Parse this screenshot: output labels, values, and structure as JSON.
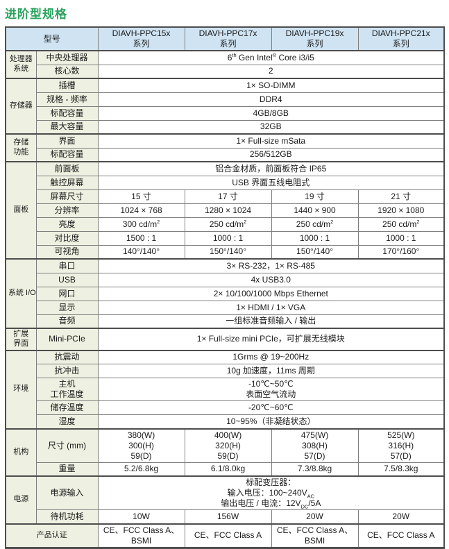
{
  "page_title": "进阶型规格",
  "colors": {
    "title-green": "#29A35D",
    "header-bg": "#CFE3F2",
    "label-bg": "#EEF0E1",
    "border-dark": "#4D4D4D",
    "border-mid": "#7F7F7F",
    "text": "#1A1A1A"
  },
  "table": {
    "header": {
      "label": "型号",
      "models": [
        "DIAVH-PPC15x\n系列",
        "DIAVH-PPC17x\n系列",
        "DIAVH-PPC19x\n系列",
        "DIAVH-PPC21x\n系列"
      ]
    },
    "groups": [
      {
        "name": "处理器\n系统",
        "rows": [
          {
            "label": "中央处理器",
            "value": "6^{th} Gen Intel^{®} Core i3/i5"
          },
          {
            "label": "核心数",
            "value": "2"
          }
        ]
      },
      {
        "name": "存储器",
        "rows": [
          {
            "label": "插槽",
            "value": "1× SO-DIMM"
          },
          {
            "label": "规格 - 频率",
            "value": "DDR4"
          },
          {
            "label": "标配容量",
            "value": "4GB/8GB"
          },
          {
            "label": "最大容量",
            "value": "32GB"
          }
        ]
      },
      {
        "name": "存储\n功能",
        "rows": [
          {
            "label": "界面",
            "value": "1× Full-size mSata"
          },
          {
            "label": "标配容量",
            "value": "256/512GB"
          }
        ]
      },
      {
        "name": "面板",
        "rows": [
          {
            "label": "前面板",
            "value": "铝合金材质，前面板符合 IP65"
          },
          {
            "label": "触控屏幕",
            "value": "USB 界面五线电阻式"
          },
          {
            "label": "屏幕尺寸",
            "values": [
              "15 寸",
              "17 寸",
              "19 寸",
              "21 寸"
            ]
          },
          {
            "label": "分辨率",
            "values": [
              "1024 × 768",
              "1280 × 1024",
              "1440 × 900",
              "1920 × 1080"
            ]
          },
          {
            "label": "亮度",
            "values": [
              "300 cd/m^{2}",
              "250 cd/m^{2}",
              "250 cd/m^{2}",
              "250 cd/m^{2}"
            ]
          },
          {
            "label": "对比度",
            "values": [
              "1500 : 1",
              "1000 : 1",
              "1000 : 1",
              "1000 : 1"
            ]
          },
          {
            "label": "可视角",
            "values": [
              "140°/140°",
              "150°/140°",
              "150°/140°",
              "170°/160°"
            ]
          }
        ]
      },
      {
        "name": "系统 I/O",
        "rows": [
          {
            "label": "串口",
            "value": "3× RS-232，1× RS-485"
          },
          {
            "label": "USB",
            "value": "4x USB3.0"
          },
          {
            "label": "网口",
            "value": "2× 10/100/1000 Mbps Ethernet"
          },
          {
            "label": "显示",
            "value": "1× HDMI / 1× VGA"
          },
          {
            "label": "音频",
            "value": "一组标准音频输入 / 输出"
          }
        ]
      },
      {
        "name": "扩展\n界面",
        "rows": [
          {
            "label": "Mini-PCIe",
            "value": "1× Full-size mini PCIe，可扩展无线模块"
          }
        ]
      },
      {
        "name": "环境",
        "rows": [
          {
            "label": "抗震动",
            "value": "1Grms @ 19~200Hz"
          },
          {
            "label": "抗冲击",
            "value": "10g 加速度，11ms 周期"
          },
          {
            "label": "主机\n工作温度",
            "value": "-10℃~50℃\n表面空气流动"
          },
          {
            "label": "储存温度",
            "value": "-20℃~60℃"
          },
          {
            "label": "湿度",
            "value": "10~95%（非凝结状态）"
          }
        ]
      },
      {
        "name": "机构",
        "rows": [
          {
            "label": "尺寸 (mm)",
            "values": [
              "380(W)\n300(H)\n59(D)",
              "400(W)\n320(H)\n59(D)",
              "475(W)\n308(H)\n57(D)",
              "525(W)\n316(H)\n57(D)"
            ]
          },
          {
            "label": "重量",
            "values": [
              "5.2/6.8kg",
              "6.1/8.0kg",
              "7.3/8.8kg",
              "7.5/8.3kg"
            ]
          }
        ]
      },
      {
        "name": "电源",
        "rows": [
          {
            "label": "电源输入",
            "value": "标配变压器：\n输入电压：100~240V_{AC}\n输出电压 / 电流：12V_{DC}/5A"
          },
          {
            "label": "待机功耗",
            "values": [
              "10W",
              "156W",
              "20W",
              "20W"
            ]
          }
        ]
      },
      {
        "name": "产品认证",
        "wide_label": true,
        "rows": [
          {
            "values": [
              "CE、FCC Class A、BSMI",
              "CE、FCC Class A",
              "CE、FCC Class A、BSMI",
              "CE、FCC Class A"
            ]
          }
        ]
      }
    ]
  }
}
